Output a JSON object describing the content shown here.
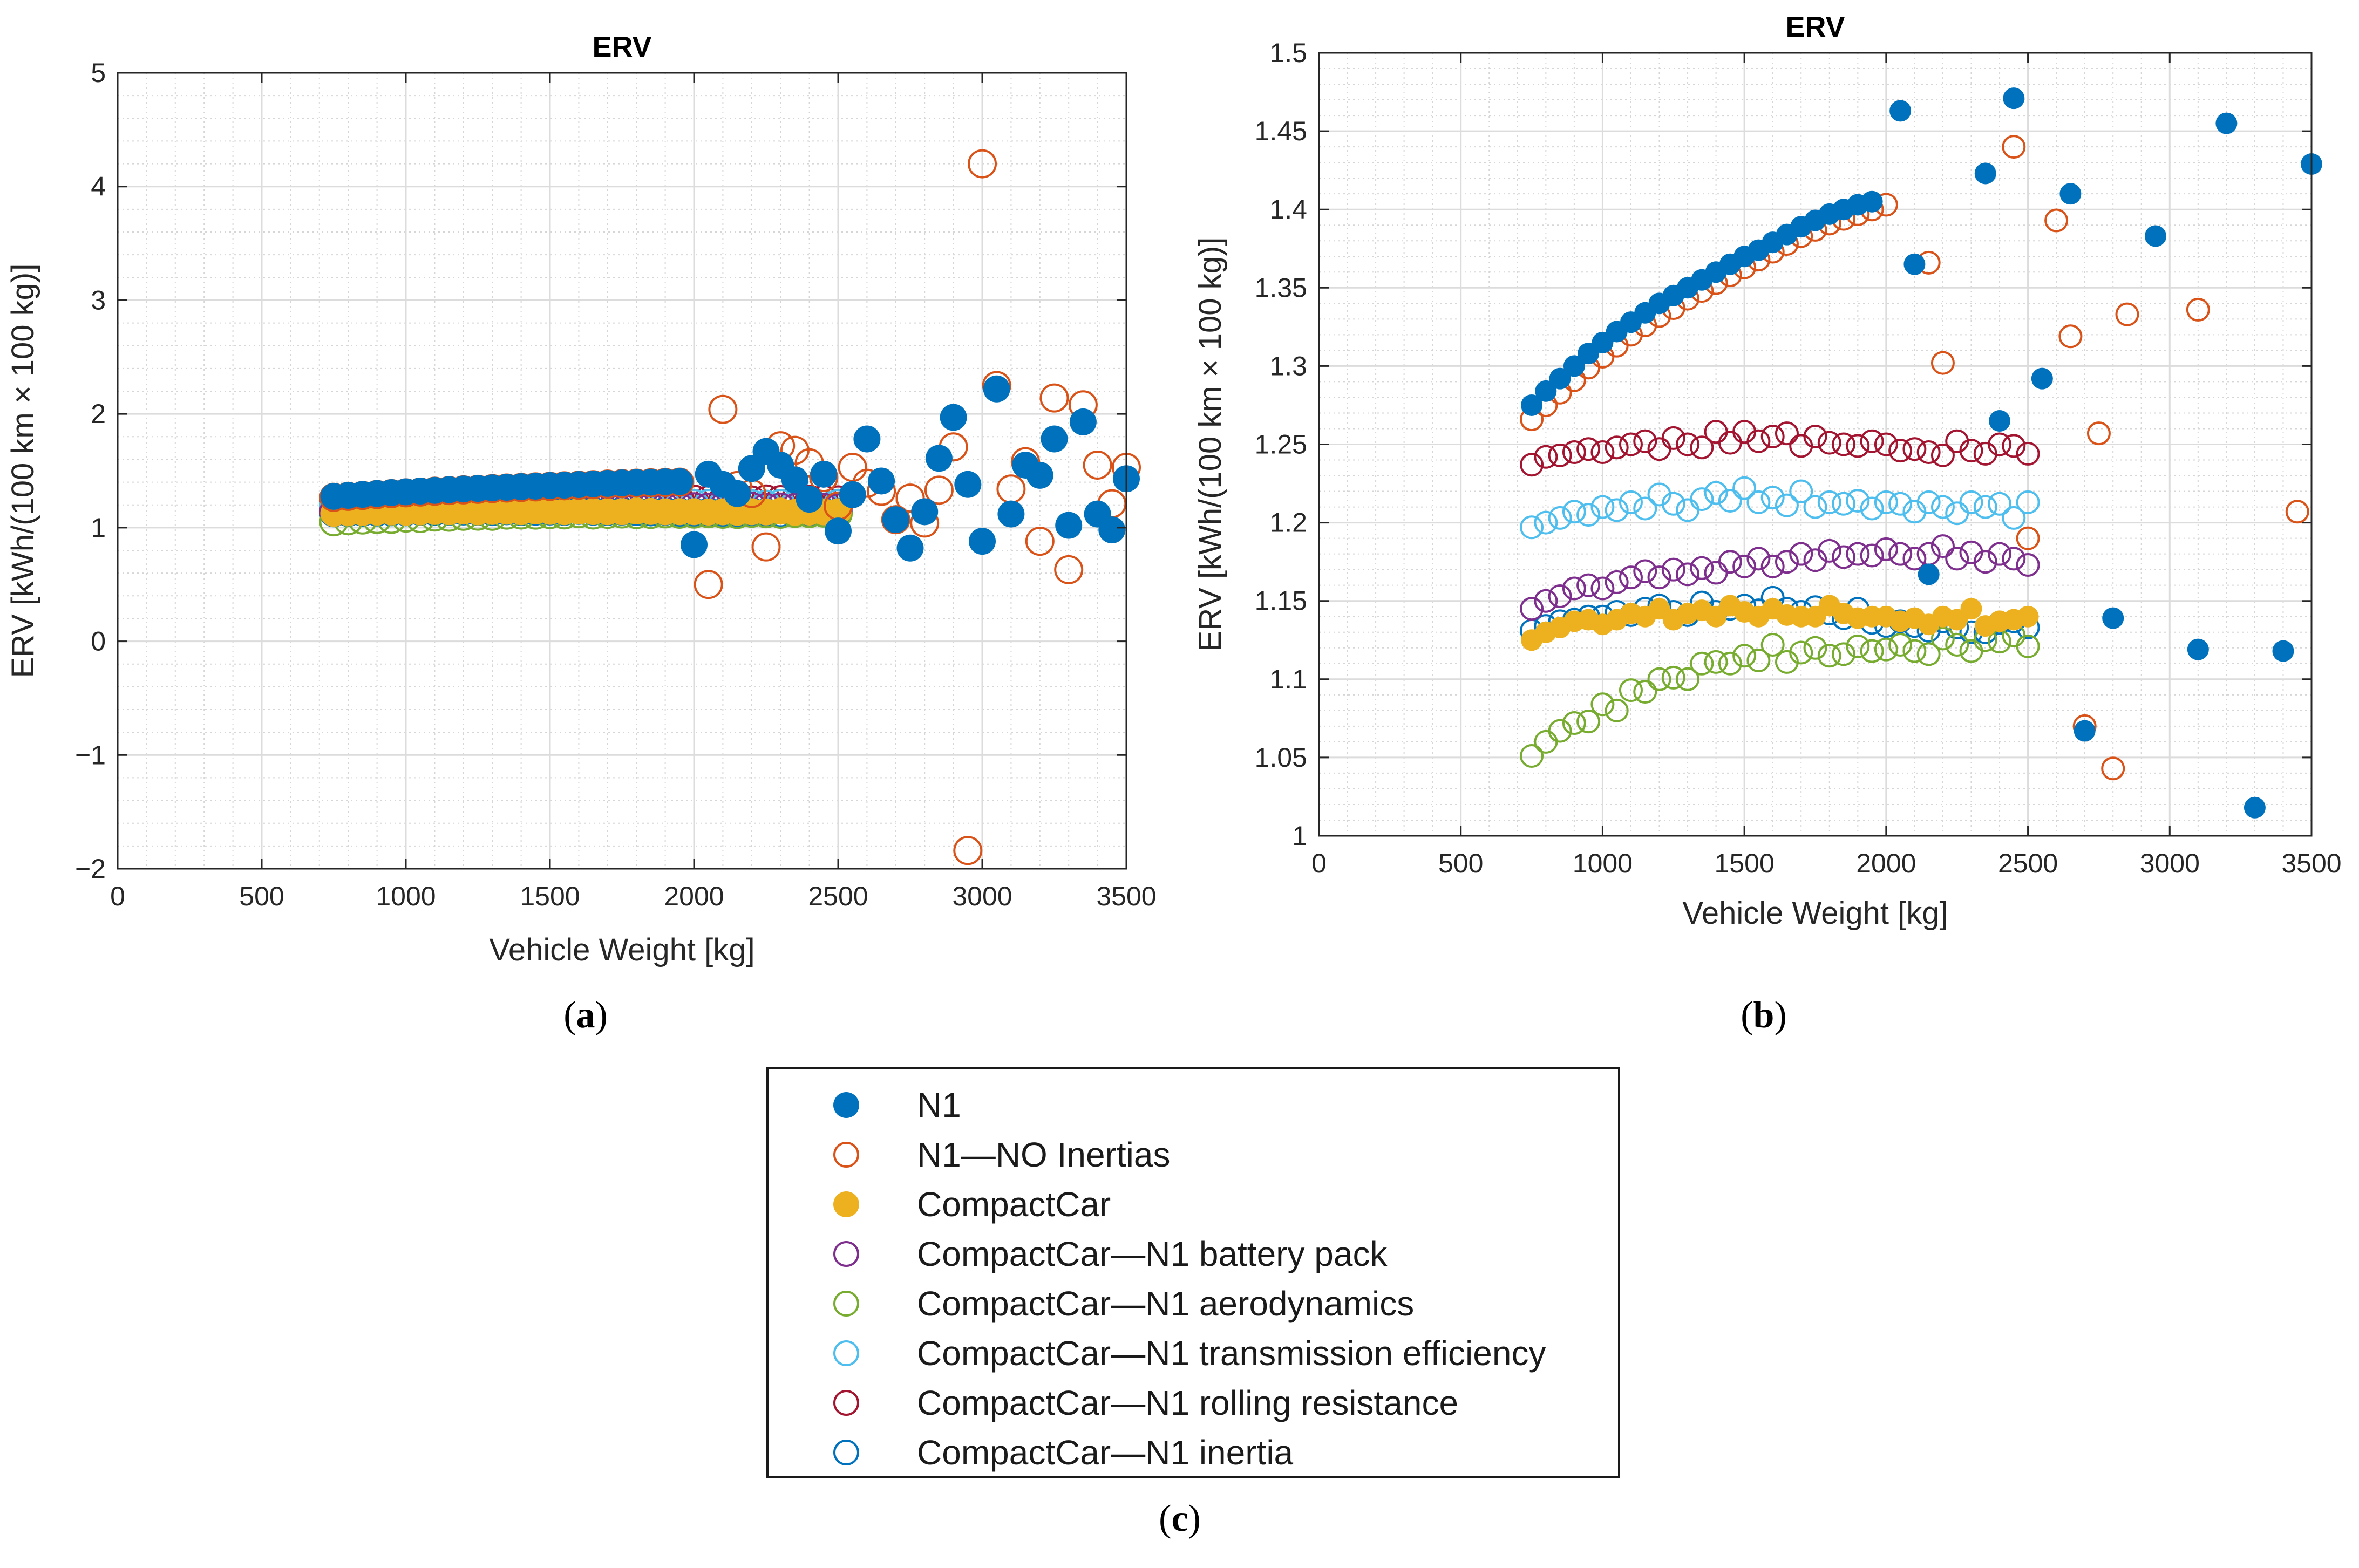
{
  "colors": {
    "n1": "#0072BD",
    "n1_no_inertias": "#D95319",
    "compactcar": "#EDB120",
    "battery_pack": "#7E2F8E",
    "aerodynamics": "#77AC30",
    "transmission": "#4DBEEE",
    "rolling": "#A2142F",
    "inertia": "#0072BD"
  },
  "captions": {
    "a": "a",
    "b": "b",
    "c": "c"
  },
  "legend": [
    {
      "name": "N1",
      "key": "n1",
      "filled": true
    },
    {
      "name": "N1—NO Inertias",
      "key": "n1_no_inertias",
      "filled": false
    },
    {
      "name": "CompactCar",
      "key": "compactcar",
      "filled": true
    },
    {
      "name": "CompactCar—N1 battery pack",
      "key": "battery_pack",
      "filled": false
    },
    {
      "name": "CompactCar—N1 aerodynamics",
      "key": "aerodynamics",
      "filled": false
    },
    {
      "name": "CompactCar—N1 transmission efficiency",
      "key": "transmission",
      "filled": false
    },
    {
      "name": "CompactCar—N1 rolling resistance",
      "key": "rolling",
      "filled": false
    },
    {
      "name": "CompactCar—N1 inertia",
      "key": "inertia",
      "filled": false
    }
  ],
  "chart_data": [
    {
      "id": "a",
      "type": "scatter",
      "title": "ERV",
      "xlabel": "Vehicle Weight [kg]",
      "ylabel": "ERV [kWh/(100 km × 100 kg)]",
      "xlim": [
        0,
        3500
      ],
      "ylim": [
        -2,
        5
      ],
      "xticks": [
        0,
        500,
        1000,
        1500,
        2000,
        2500,
        3000,
        3500
      ],
      "yticks": [
        -2,
        -1,
        0,
        1,
        2,
        3,
        4,
        5
      ],
      "ytick_labels": [
        "−2",
        "−1",
        "0",
        "1",
        "2",
        "3",
        "4",
        "5"
      ],
      "grid": true,
      "series_ref": "shared",
      "extra_points": {
        "n1": [
          [
            2000,
            0.85
          ],
          [
            2050,
            1.47
          ],
          [
            2100,
            1.38
          ],
          [
            2150,
            1.3
          ],
          [
            2200,
            1.52
          ],
          [
            2250,
            1.67
          ],
          [
            2300,
            1.55
          ],
          [
            2350,
            1.42
          ],
          [
            2400,
            1.25
          ],
          [
            2450,
            1.47
          ],
          [
            2500,
            0.97
          ],
          [
            2550,
            1.29
          ],
          [
            2600,
            1.78
          ],
          [
            2650,
            1.41
          ],
          [
            2700,
            1.07
          ],
          [
            2750,
            0.82
          ],
          [
            2800,
            1.14
          ],
          [
            2850,
            1.61
          ],
          [
            2900,
            1.97
          ],
          [
            2950,
            1.38
          ],
          [
            3000,
            0.88
          ],
          [
            3050,
            2.22
          ],
          [
            3100,
            1.12
          ],
          [
            3150,
            1.55
          ],
          [
            3200,
            1.46
          ],
          [
            3250,
            1.78
          ],
          [
            3300,
            1.02
          ],
          [
            3350,
            1.93
          ],
          [
            3400,
            1.12
          ],
          [
            3450,
            0.98
          ],
          [
            3500,
            1.43
          ]
        ],
        "n1_no_inertias": [
          [
            2050,
            0.5
          ],
          [
            2100,
            2.04
          ],
          [
            2150,
            1.37
          ],
          [
            2200,
            1.3
          ],
          [
            2250,
            0.83
          ],
          [
            2300,
            1.72
          ],
          [
            2350,
            1.68
          ],
          [
            2400,
            1.57
          ],
          [
            2450,
            1.44
          ],
          [
            2500,
            1.19
          ],
          [
            2550,
            1.53
          ],
          [
            2600,
            1.39
          ],
          [
            2650,
            1.32
          ],
          [
            2700,
            1.07
          ],
          [
            2750,
            1.26
          ],
          [
            2800,
            1.04
          ],
          [
            2850,
            1.33
          ],
          [
            2900,
            1.71
          ],
          [
            2950,
            -1.84
          ],
          [
            3000,
            4.2
          ],
          [
            3050,
            2.25
          ],
          [
            3100,
            1.34
          ],
          [
            3150,
            1.58
          ],
          [
            3200,
            0.88
          ],
          [
            3250,
            2.14
          ],
          [
            3300,
            0.63
          ],
          [
            3350,
            2.08
          ],
          [
            3400,
            1.55
          ],
          [
            3450,
            1.21
          ],
          [
            3500,
            1.53
          ]
        ]
      }
    },
    {
      "id": "b",
      "type": "scatter",
      "title": "ERV",
      "xlabel": "Vehicle Weight [kg]",
      "ylabel": "ERV [kWh/(100 km × 100 kg)]",
      "xlim": [
        0,
        3500
      ],
      "ylim": [
        1,
        1.5
      ],
      "xticks": [
        0,
        500,
        1000,
        1500,
        2000,
        2500,
        3000,
        3500
      ],
      "yticks": [
        1,
        1.05,
        1.1,
        1.15,
        1.2,
        1.25,
        1.3,
        1.35,
        1.4,
        1.45,
        1.5
      ],
      "ytick_labels": [
        "1",
        "1.05",
        "1.1",
        "1.15",
        "1.2",
        "1.25",
        "1.3",
        "1.35",
        "1.4",
        "1.45",
        "1.5"
      ],
      "grid": true,
      "series_ref": "shared",
      "extra_points": {
        "n1": [
          [
            2050,
            1.463
          ],
          [
            2100,
            1.365
          ],
          [
            2150,
            1.167
          ],
          [
            2350,
            1.423
          ],
          [
            2400,
            1.265
          ],
          [
            2450,
            1.471
          ],
          [
            2550,
            1.292
          ],
          [
            2650,
            1.41
          ],
          [
            2700,
            1.067
          ],
          [
            2800,
            1.139
          ],
          [
            2950,
            1.383
          ],
          [
            3100,
            1.119
          ],
          [
            3200,
            1.455
          ],
          [
            3300,
            1.018
          ],
          [
            3400,
            1.118
          ],
          [
            3500,
            1.429
          ]
        ],
        "n1_no_inertias": [
          [
            2000,
            1.403
          ],
          [
            2150,
            1.366
          ],
          [
            2200,
            1.302
          ],
          [
            2450,
            1.44
          ],
          [
            2500,
            1.19
          ],
          [
            2600,
            1.393
          ],
          [
            2650,
            1.319
          ],
          [
            2700,
            1.07
          ],
          [
            2750,
            1.257
          ],
          [
            2800,
            1.043
          ],
          [
            2850,
            1.333
          ],
          [
            3100,
            1.336
          ],
          [
            3450,
            1.207
          ]
        ]
      }
    }
  ],
  "shared_series": {
    "x": [
      750,
      800,
      850,
      900,
      950,
      1000,
      1050,
      1100,
      1150,
      1200,
      1250,
      1300,
      1350,
      1400,
      1450,
      1500,
      1550,
      1600,
      1650,
      1700,
      1750,
      1800,
      1850,
      1900,
      1950,
      2000,
      2050,
      2100,
      2150,
      2200,
      2250,
      2300,
      2350,
      2400,
      2450,
      2500
    ],
    "n1": [
      1.275,
      1.284,
      1.292,
      1.3,
      1.308,
      1.315,
      1.322,
      1.328,
      1.334,
      1.34,
      1.345,
      1.35,
      1.355,
      1.36,
      1.365,
      1.37,
      1.374,
      1.379,
      1.384,
      1.389,
      1.393,
      1.397,
      1.4,
      1.403,
      1.405
    ],
    "n1_no_inertias": [
      1.266,
      1.275,
      1.283,
      1.291,
      1.299,
      1.306,
      1.313,
      1.32,
      1.326,
      1.332,
      1.337,
      1.343,
      1.348,
      1.353,
      1.358,
      1.363,
      1.368,
      1.373,
      1.378,
      1.383,
      1.387,
      1.391,
      1.394,
      1.397,
      1.4
    ],
    "compactcar": [
      1.125,
      1.13,
      1.133,
      1.137,
      1.138,
      1.135,
      1.138,
      1.142,
      1.14,
      1.145,
      1.138,
      1.142,
      1.144,
      1.14,
      1.147,
      1.143,
      1.14,
      1.145,
      1.141,
      1.14,
      1.14,
      1.147,
      1.142,
      1.139,
      1.14,
      1.14,
      1.137,
      1.139,
      1.135,
      1.14,
      1.138,
      1.145,
      1.134,
      1.137,
      1.138,
      1.14
    ],
    "battery_pack": [
      1.145,
      1.15,
      1.153,
      1.158,
      1.16,
      1.158,
      1.162,
      1.165,
      1.169,
      1.165,
      1.17,
      1.167,
      1.171,
      1.168,
      1.175,
      1.172,
      1.177,
      1.172,
      1.175,
      1.18,
      1.176,
      1.182,
      1.178,
      1.18,
      1.179,
      1.183,
      1.18,
      1.177,
      1.18,
      1.185,
      1.177,
      1.181,
      1.175,
      1.18,
      1.177,
      1.173
    ],
    "aerodynamics": [
      1.051,
      1.06,
      1.067,
      1.072,
      1.073,
      1.084,
      1.08,
      1.093,
      1.092,
      1.1,
      1.101,
      1.1,
      1.11,
      1.111,
      1.11,
      1.115,
      1.112,
      1.122,
      1.111,
      1.117,
      1.12,
      1.115,
      1.116,
      1.121,
      1.118,
      1.119,
      1.122,
      1.118,
      1.116,
      1.126,
      1.122,
      1.118,
      1.125,
      1.124,
      1.128,
      1.121
    ],
    "transmission": [
      1.197,
      1.2,
      1.203,
      1.207,
      1.205,
      1.21,
      1.208,
      1.213,
      1.209,
      1.218,
      1.212,
      1.208,
      1.215,
      1.219,
      1.214,
      1.222,
      1.213,
      1.216,
      1.211,
      1.22,
      1.21,
      1.213,
      1.212,
      1.214,
      1.209,
      1.213,
      1.212,
      1.207,
      1.213,
      1.21,
      1.206,
      1.213,
      1.21,
      1.212,
      1.203,
      1.213
    ],
    "rolling": [
      1.237,
      1.242,
      1.243,
      1.245,
      1.247,
      1.245,
      1.248,
      1.25,
      1.252,
      1.247,
      1.254,
      1.25,
      1.248,
      1.258,
      1.251,
      1.258,
      1.252,
      1.255,
      1.257,
      1.249,
      1.255,
      1.251,
      1.25,
      1.249,
      1.252,
      1.25,
      1.246,
      1.247,
      1.245,
      1.243,
      1.252,
      1.246,
      1.244,
      1.25,
      1.249,
      1.244
    ],
    "inertia": [
      1.131,
      1.134,
      1.137,
      1.138,
      1.14,
      1.14,
      1.143,
      1.141,
      1.145,
      1.147,
      1.143,
      1.141,
      1.149,
      1.143,
      1.145,
      1.147,
      1.144,
      1.152,
      1.145,
      1.143,
      1.146,
      1.142,
      1.139,
      1.145,
      1.136,
      1.134,
      1.137,
      1.134,
      1.131,
      1.137,
      1.133,
      1.13,
      1.13,
      1.136,
      1.137,
      1.133
    ]
  }
}
